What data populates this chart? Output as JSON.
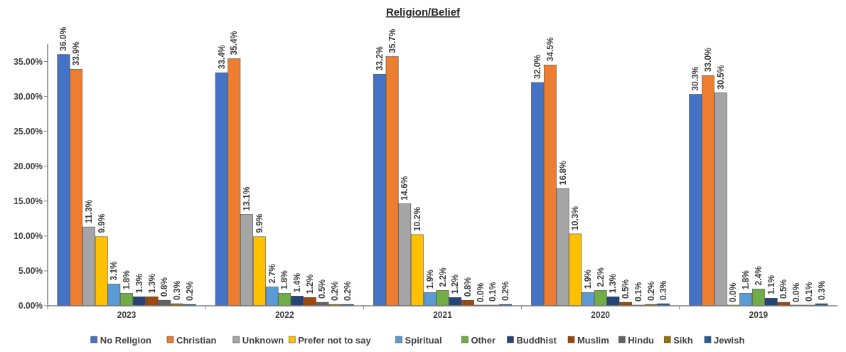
{
  "chart_data": {
    "type": "bar",
    "title": "Religion/Belief",
    "categories": [
      "2023",
      "2022",
      "2021",
      "2020",
      "2019"
    ],
    "series": [
      {
        "name": "No Religion",
        "color": "#4472c4",
        "values": [
          36.0,
          33.4,
          33.2,
          32.0,
          30.3
        ],
        "value_labels": [
          "36.0%",
          "33.4%",
          "33.2%",
          "32.0%",
          "30.3%"
        ]
      },
      {
        "name": "Christian",
        "color": "#ed7d31",
        "values": [
          33.9,
          35.4,
          35.7,
          34.5,
          33.0
        ],
        "value_labels": [
          "33.9%",
          "35.4%",
          "35.7%",
          "34.5%",
          "33.0%"
        ]
      },
      {
        "name": "Unknown",
        "color": "#a5a5a5",
        "values": [
          11.3,
          13.1,
          14.6,
          16.8,
          30.5
        ],
        "value_labels": [
          "11.3%",
          "13.1%",
          "14.6%",
          "16.8%",
          "30.5%"
        ]
      },
      {
        "name": "Prefer not to say",
        "color": "#ffc000",
        "values": [
          9.9,
          9.9,
          10.2,
          10.3,
          0.0
        ],
        "value_labels": [
          "9.9%",
          "9.9%",
          "10.2%",
          "10.3%",
          "0.0%"
        ]
      },
      {
        "name": "Spiritual",
        "color": "#5b9bd5",
        "values": [
          3.1,
          2.7,
          1.9,
          1.9,
          1.8
        ],
        "value_labels": [
          "3.1%",
          "2.7%",
          "1.9%",
          "1.9%",
          "1.8%"
        ]
      },
      {
        "name": "Other",
        "color": "#70ad47",
        "values": [
          1.8,
          1.8,
          2.2,
          2.2,
          2.4
        ],
        "value_labels": [
          "1.8%",
          "1.8%",
          "2.2%",
          "2.2%",
          "2.4%"
        ]
      },
      {
        "name": "Buddhist",
        "color": "#264478",
        "values": [
          1.3,
          1.4,
          1.2,
          1.3,
          1.1
        ],
        "value_labels": [
          "1.3%",
          "1.4%",
          "1.2%",
          "1.3%",
          "1.1%"
        ]
      },
      {
        "name": "Muslim",
        "color": "#9e480e",
        "values": [
          1.3,
          1.2,
          0.8,
          0.5,
          0.5
        ],
        "value_labels": [
          "1.3%",
          "1.2%",
          "0.8%",
          "0.5%",
          "0.5%"
        ]
      },
      {
        "name": "Hindu",
        "color": "#636363",
        "values": [
          0.8,
          0.5,
          0.0,
          0.1,
          0.0
        ],
        "value_labels": [
          "0.8%",
          "0.5%",
          "0.0%",
          "0.1%",
          "0.0%"
        ]
      },
      {
        "name": "Sikh",
        "color": "#997300",
        "values": [
          0.3,
          0.2,
          0.1,
          0.2,
          0.1
        ],
        "value_labels": [
          "0.3%",
          "0.2%",
          "0.1%",
          "0.2%",
          "0.1%"
        ]
      },
      {
        "name": "Jewish",
        "color": "#255e91",
        "values": [
          0.2,
          0.2,
          0.2,
          0.3,
          0.3
        ],
        "value_labels": [
          "0.2%",
          "0.2%",
          "0.2%",
          "0.3%",
          "0.3%"
        ]
      }
    ],
    "ylim": [
      0,
      37.5
    ],
    "yticks": [
      {
        "value": 0,
        "label": "0.00%"
      },
      {
        "value": 5,
        "label": "5.00%"
      },
      {
        "value": 10,
        "label": "10.00%"
      },
      {
        "value": 15,
        "label": "15.00%"
      },
      {
        "value": 20,
        "label": "20.00%"
      },
      {
        "value": 25,
        "label": "25.00%"
      },
      {
        "value": 30,
        "label": "30.00%"
      },
      {
        "value": 35,
        "label": "35.00%"
      }
    ],
    "grid": false,
    "legend": "bottom"
  }
}
